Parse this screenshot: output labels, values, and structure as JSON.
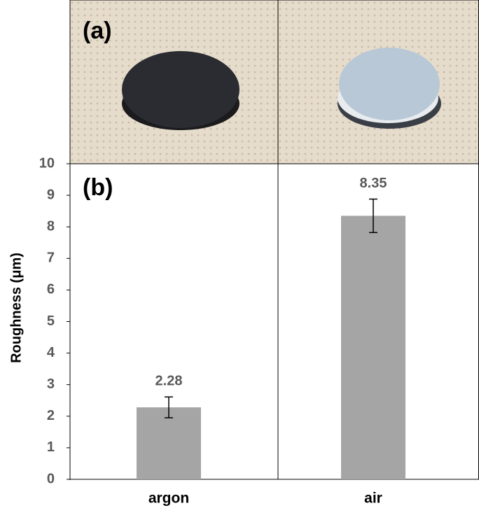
{
  "chart_data": {
    "type": "bar",
    "panel_labels": [
      "(a)",
      "(b)"
    ],
    "y_label": "Roughness (μm)",
    "categories": [
      "argon",
      "air"
    ],
    "values": [
      2.28,
      8.35
    ],
    "errors": [
      0.33,
      0.53
    ],
    "color": "#a5a5a5",
    "ylim": [
      0,
      10
    ],
    "yticks": [
      0,
      1,
      2,
      3,
      4,
      5,
      6,
      7,
      8,
      9,
      10
    ]
  }
}
